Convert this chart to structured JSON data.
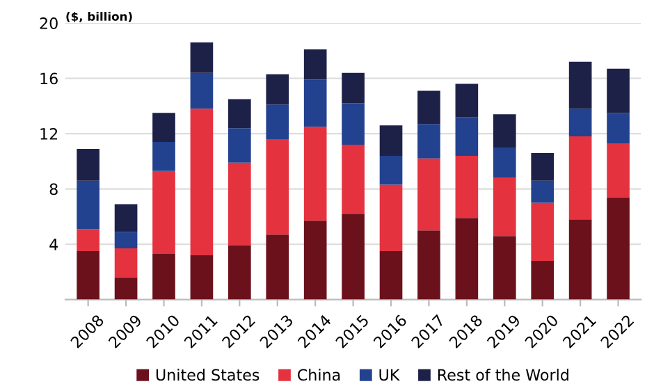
{
  "chart_data": {
    "type": "bar",
    "stacked": true,
    "ylabel": "($, billion)",
    "categories": [
      "2008",
      "2009",
      "2010",
      "2011",
      "2012",
      "2013",
      "2014",
      "2015",
      "2016",
      "2017",
      "2018",
      "2019",
      "2020",
      "2021",
      "2022"
    ],
    "series": [
      {
        "name": "United States",
        "color": "#6b111c",
        "values": [
          3.5,
          1.6,
          3.3,
          3.2,
          3.9,
          4.7,
          5.7,
          6.2,
          3.5,
          5.0,
          5.9,
          4.6,
          2.8,
          5.8,
          7.4
        ]
      },
      {
        "name": "China",
        "color": "#e5323f",
        "values": [
          1.6,
          2.1,
          6.0,
          10.6,
          6.0,
          6.9,
          6.8,
          5.0,
          4.8,
          5.2,
          4.5,
          4.2,
          4.2,
          6.0,
          3.9
        ]
      },
      {
        "name": "UK",
        "color": "#22418f",
        "values": [
          3.5,
          1.2,
          2.1,
          2.6,
          2.5,
          2.5,
          3.4,
          3.0,
          2.1,
          2.5,
          2.8,
          2.2,
          1.6,
          2.0,
          2.2
        ]
      },
      {
        "name": "Rest of the World",
        "color": "#1e2147",
        "values": [
          2.3,
          2.0,
          2.1,
          2.2,
          2.1,
          2.2,
          2.2,
          2.2,
          2.2,
          2.4,
          2.4,
          2.4,
          2.0,
          3.4,
          3.2
        ]
      }
    ],
    "ylim": [
      0,
      20
    ],
    "yticks": [
      4,
      8,
      12,
      16,
      20
    ],
    "grid": "y",
    "legend": "bottom"
  }
}
